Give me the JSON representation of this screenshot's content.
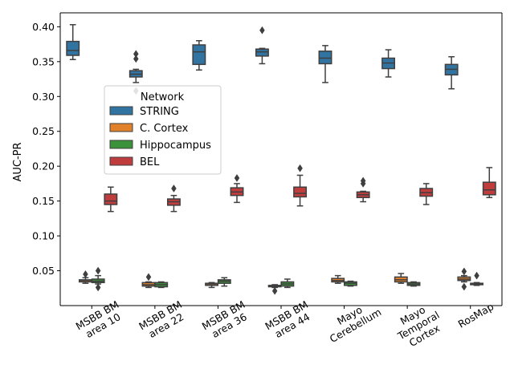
{
  "chart_data": {
    "type": "box",
    "ylabel": "AUC-PR",
    "xlabel": "",
    "ylim": [
      0.0,
      0.42
    ],
    "yticks": [
      "0.05",
      "0.10",
      "0.15",
      "0.20",
      "0.25",
      "0.30",
      "0.35",
      "0.40"
    ],
    "grid": false,
    "legend": {
      "title": "Network",
      "placement": "center-left",
      "entries": [
        "STRING",
        "C. Cortex",
        "Hippocampus",
        "BEL"
      ]
    },
    "categories": [
      [
        "MSBB BM",
        "area 10"
      ],
      [
        "MSBB BM",
        "area 22"
      ],
      [
        "MSBB BM",
        "area 36"
      ],
      [
        "MSBB BM",
        "area 44"
      ],
      [
        "Mayo",
        "Cerebellum"
      ],
      [
        "Mayo",
        "Temporal",
        "Cortex"
      ],
      [
        "RosMap"
      ]
    ],
    "series": [
      {
        "name": "STRING",
        "color": "#3274a1",
        "boxes": [
          {
            "whislo": 0.353,
            "q1": 0.359,
            "med": 0.366,
            "q3": 0.379,
            "whishi": 0.403,
            "fliers": []
          },
          {
            "whislo": 0.32,
            "q1": 0.328,
            "med": 0.332,
            "q3": 0.337,
            "whishi": 0.339,
            "fliers": [
              0.354,
              0.361,
              0.308
            ]
          },
          {
            "whislo": 0.338,
            "q1": 0.346,
            "med": 0.364,
            "q3": 0.374,
            "whishi": 0.38,
            "fliers": []
          },
          {
            "whislo": 0.347,
            "q1": 0.358,
            "med": 0.364,
            "q3": 0.368,
            "whishi": 0.369,
            "fliers": [
              0.395
            ]
          },
          {
            "whislo": 0.32,
            "q1": 0.347,
            "med": 0.355,
            "q3": 0.365,
            "whishi": 0.373,
            "fliers": []
          },
          {
            "whislo": 0.328,
            "q1": 0.34,
            "med": 0.348,
            "q3": 0.355,
            "whishi": 0.367,
            "fliers": []
          },
          {
            "whislo": 0.311,
            "q1": 0.331,
            "med": 0.339,
            "q3": 0.346,
            "whishi": 0.357,
            "fliers": []
          }
        ]
      },
      {
        "name": "C. Cortex",
        "color": "#e1812c",
        "boxes": [
          {
            "whislo": 0.032,
            "q1": 0.034,
            "med": 0.036,
            "q3": 0.037,
            "whishi": 0.04,
            "fliers": [
              0.045
            ]
          },
          {
            "whislo": 0.026,
            "q1": 0.028,
            "med": 0.03,
            "q3": 0.033,
            "whishi": 0.034,
            "fliers": [
              0.041
            ]
          },
          {
            "whislo": 0.026,
            "q1": 0.029,
            "med": 0.031,
            "q3": 0.032,
            "whishi": 0.033,
            "fliers": []
          },
          {
            "whislo": 0.026,
            "q1": 0.027,
            "med": 0.028,
            "q3": 0.029,
            "whishi": 0.03,
            "fliers": [
              0.021
            ]
          },
          {
            "whislo": 0.032,
            "q1": 0.034,
            "med": 0.036,
            "q3": 0.039,
            "whishi": 0.043,
            "fliers": []
          },
          {
            "whislo": 0.032,
            "q1": 0.034,
            "med": 0.037,
            "q3": 0.041,
            "whishi": 0.046,
            "fliers": []
          },
          {
            "whislo": 0.034,
            "q1": 0.036,
            "med": 0.038,
            "q3": 0.041,
            "whishi": 0.043,
            "fliers": [
              0.049,
              0.027
            ]
          }
        ]
      },
      {
        "name": "Hippocampus",
        "color": "#3a923a",
        "boxes": [
          {
            "whislo": 0.031,
            "q1": 0.033,
            "med": 0.035,
            "q3": 0.038,
            "whishi": 0.043,
            "fliers": [
              0.05,
              0.026
            ]
          },
          {
            "whislo": 0.026,
            "q1": 0.027,
            "med": 0.03,
            "q3": 0.033,
            "whishi": 0.034,
            "fliers": []
          },
          {
            "whislo": 0.028,
            "q1": 0.032,
            "med": 0.035,
            "q3": 0.037,
            "whishi": 0.04,
            "fliers": []
          },
          {
            "whislo": 0.026,
            "q1": 0.028,
            "med": 0.031,
            "q3": 0.034,
            "whishi": 0.038,
            "fliers": []
          },
          {
            "whislo": 0.028,
            "q1": 0.029,
            "med": 0.032,
            "q3": 0.034,
            "whishi": 0.035,
            "fliers": []
          },
          {
            "whislo": 0.028,
            "q1": 0.029,
            "med": 0.031,
            "q3": 0.033,
            "whishi": 0.034,
            "fliers": []
          },
          {
            "whislo": 0.029,
            "q1": 0.03,
            "med": 0.031,
            "q3": 0.032,
            "whishi": 0.033,
            "fliers": [
              0.043
            ]
          }
        ]
      },
      {
        "name": "BEL",
        "color": "#c03d3e",
        "boxes": [
          {
            "whislo": 0.135,
            "q1": 0.145,
            "med": 0.15,
            "q3": 0.16,
            "whishi": 0.17,
            "fliers": []
          },
          {
            "whislo": 0.135,
            "q1": 0.144,
            "med": 0.149,
            "q3": 0.153,
            "whishi": 0.158,
            "fliers": [
              0.168
            ]
          },
          {
            "whislo": 0.148,
            "q1": 0.158,
            "med": 0.163,
            "q3": 0.169,
            "whishi": 0.175,
            "fliers": [
              0.183
            ]
          },
          {
            "whislo": 0.143,
            "q1": 0.156,
            "med": 0.161,
            "q3": 0.17,
            "whishi": 0.187,
            "fliers": [
              0.197
            ]
          },
          {
            "whislo": 0.149,
            "q1": 0.155,
            "med": 0.159,
            "q3": 0.163,
            "whishi": 0.164,
            "fliers": [
              0.175,
              0.179
            ]
          },
          {
            "whislo": 0.145,
            "q1": 0.157,
            "med": 0.162,
            "q3": 0.168,
            "whishi": 0.175,
            "fliers": []
          },
          {
            "whislo": 0.155,
            "q1": 0.159,
            "med": 0.166,
            "q3": 0.177,
            "whishi": 0.198,
            "fliers": []
          }
        ]
      }
    ]
  }
}
